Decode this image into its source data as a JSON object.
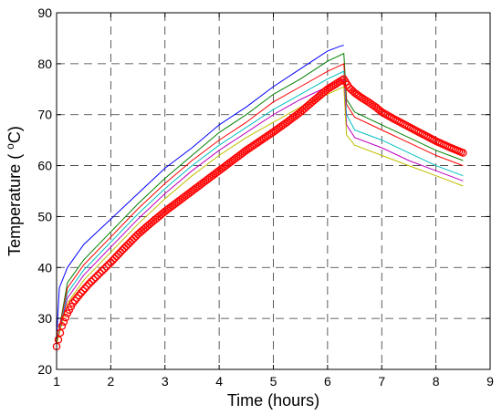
{
  "chart_data": {
    "type": "line",
    "title": "",
    "xlabel": "Time (hours)",
    "ylabel_main": "Temperature ( ",
    "ylabel_sup": "o",
    "ylabel_tail": "C)",
    "xlim": [
      1,
      9
    ],
    "ylim": [
      20,
      90
    ],
    "xticks": [
      1,
      2,
      3,
      4,
      5,
      6,
      7,
      8,
      9
    ],
    "yticks": [
      20,
      30,
      40,
      50,
      60,
      70,
      80,
      90
    ],
    "grid": true,
    "series": [
      {
        "color": "#0000ff",
        "style": "line",
        "x": [
          1.0,
          1.05,
          1.2,
          1.5,
          2.0,
          2.5,
          3.0,
          3.5,
          4.0,
          4.5,
          5.0,
          5.5,
          6.0,
          6.25,
          6.3
        ],
        "y": [
          26,
          36,
          40,
          44.5,
          49.5,
          54.5,
          59.5,
          63.5,
          68,
          71.5,
          75.5,
          79,
          82.5,
          83.5,
          83.6
        ]
      },
      {
        "color": "#008000",
        "style": "line",
        "x": [
          1.0,
          1.2,
          1.5,
          2.0,
          2.5,
          3.0,
          3.5,
          4.0,
          4.5,
          5.0,
          5.5,
          6.0,
          6.3,
          6.35,
          6.5,
          7.0,
          7.5,
          8.0,
          8.5
        ],
        "y": [
          25,
          37,
          41.5,
          47,
          52.5,
          57.5,
          62,
          66.5,
          70,
          74,
          77,
          80.5,
          82,
          73,
          70.5,
          68,
          65.5,
          63,
          61
        ]
      },
      {
        "color": "#ff0000",
        "style": "line",
        "x": [
          1.0,
          1.2,
          1.5,
          2.0,
          2.5,
          3.0,
          3.5,
          4.0,
          4.5,
          5.0,
          5.5,
          6.0,
          6.3,
          6.35,
          6.5,
          7.0,
          7.5,
          8.0,
          8.5
        ],
        "y": [
          25,
          36,
          40.5,
          46,
          51.5,
          56.5,
          61,
          65,
          68.5,
          72.5,
          75.5,
          78.5,
          80,
          72,
          69.5,
          67,
          64.5,
          62,
          60
        ]
      },
      {
        "color": "#00bfbf",
        "style": "line",
        "x": [
          1.0,
          1.2,
          1.5,
          2.0,
          2.5,
          3.0,
          3.5,
          4.0,
          4.5,
          5.0,
          5.5,
          6.0,
          6.3,
          6.35,
          6.5,
          7.0,
          7.5,
          8.0,
          8.5
        ],
        "y": [
          25,
          35,
          39.5,
          45,
          50.5,
          55.5,
          60,
          64,
          67.5,
          71,
          74,
          77,
          78.5,
          70,
          67,
          65,
          62.5,
          60,
          58
        ]
      },
      {
        "color": "#bf00bf",
        "style": "line",
        "x": [
          1.0,
          1.2,
          1.5,
          2.0,
          2.5,
          3.0,
          3.5,
          4.0,
          4.5,
          5.0,
          5.5,
          6.0,
          6.3,
          6.35,
          6.5,
          7.0,
          7.5,
          8.0,
          8.5
        ],
        "y": [
          25,
          34,
          38.5,
          44,
          49.5,
          54.5,
          59,
          63,
          66.5,
          70,
          73,
          75.5,
          77,
          68,
          65.5,
          63.5,
          61,
          59,
          57
        ]
      },
      {
        "color": "#bfbf00",
        "style": "line",
        "x": [
          1.0,
          1.2,
          1.5,
          2.0,
          2.5,
          3.0,
          3.5,
          4.0,
          4.5,
          5.0,
          5.5,
          6.0,
          6.3,
          6.35,
          6.5,
          7.0,
          7.5,
          8.0,
          8.5
        ],
        "y": [
          25,
          33,
          37.5,
          43,
          48.5,
          53.5,
          58,
          62,
          65.5,
          68.5,
          71.5,
          74,
          75.5,
          66,
          64,
          62,
          60,
          58,
          56
        ]
      },
      {
        "color": "#ff0000",
        "style": "markers",
        "x": [
          1.0,
          1.1,
          1.2,
          1.3,
          1.45,
          1.6,
          1.8,
          2.0,
          2.25,
          2.5,
          2.75,
          3.0,
          3.25,
          3.5,
          3.75,
          4.0,
          4.25,
          4.5,
          4.75,
          5.0,
          5.25,
          5.5,
          5.75,
          6.0,
          6.15,
          6.3,
          6.4,
          6.5,
          6.6,
          6.75,
          6.9,
          7.0,
          7.25,
          7.5,
          7.75,
          8.0,
          8.25,
          8.5
        ],
        "y": [
          24.5,
          28.5,
          31,
          33,
          35,
          36.8,
          38.9,
          41,
          43.8,
          46.5,
          48.8,
          51,
          53,
          55,
          57,
          59,
          61,
          63,
          64.8,
          66.6,
          68.5,
          70.5,
          72.8,
          75,
          76,
          77,
          75.3,
          74.3,
          73.5,
          72.5,
          71.4,
          70.5,
          69,
          67.6,
          66.2,
          64.8,
          63.6,
          62.5
        ]
      }
    ]
  }
}
